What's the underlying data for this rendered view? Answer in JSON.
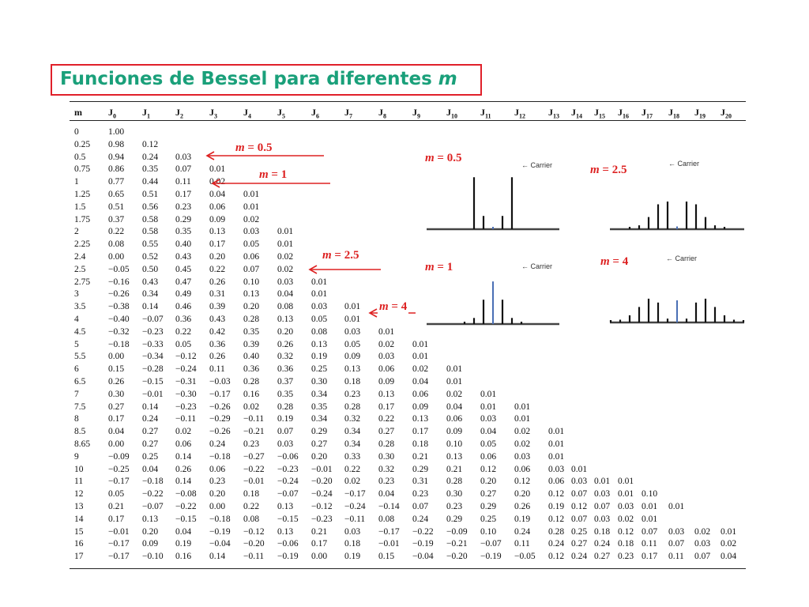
{
  "title": {
    "text": "Funciones de Bessel para diferentes ",
    "var": "m"
  },
  "headers": [
    "m",
    "J0",
    "J1",
    "J2",
    "J3",
    "J4",
    "J5",
    "J6",
    "J7",
    "J8",
    "J9",
    "J10",
    "J11",
    "J12",
    "J13",
    "J14",
    "J15",
    "J16",
    "J17",
    "J18",
    "J19",
    "J20"
  ],
  "rows": [
    [
      "0",
      "1.00"
    ],
    [
      "0.25",
      "0.98",
      "0.12"
    ],
    [
      "0.5",
      "0.94",
      "0.24",
      "0.03"
    ],
    [
      "0.75",
      "0.86",
      "0.35",
      "0.07",
      "0.01"
    ],
    [
      "1",
      "0.77",
      "0.44",
      "0.11",
      "0.02"
    ],
    [
      "1.25",
      "0.65",
      "0.51",
      "0.17",
      "0.04",
      "0.01"
    ],
    [
      "1.5",
      "0.51",
      "0.56",
      "0.23",
      "0.06",
      "0.01"
    ],
    [
      "1.75",
      "0.37",
      "0.58",
      "0.29",
      "0.09",
      "0.02"
    ],
    [
      "2",
      "0.22",
      "0.58",
      "0.35",
      "0.13",
      "0.03",
      "0.01"
    ],
    [
      "2.25",
      "0.08",
      "0.55",
      "0.40",
      "0.17",
      "0.05",
      "0.01"
    ],
    [
      "2.4",
      "0.00",
      "0.52",
      "0.43",
      "0.20",
      "0.06",
      "0.02"
    ],
    [
      "2.5",
      "−0.05",
      "0.50",
      "0.45",
      "0.22",
      "0.07",
      "0.02"
    ],
    [
      "2.75",
      "−0.16",
      "0.43",
      "0.47",
      "0.26",
      "0.10",
      "0.03",
      "0.01"
    ],
    [
      "3",
      "−0.26",
      "0.34",
      "0.49",
      "0.31",
      "0.13",
      "0.04",
      "0.01"
    ],
    [
      "3.5",
      "−0.38",
      "0.14",
      "0.46",
      "0.39",
      "0.20",
      "0.08",
      "0.03",
      "0.01"
    ],
    [
      "4",
      "−0.40",
      "−0.07",
      "0.36",
      "0.43",
      "0.28",
      "0.13",
      "0.05",
      "0.01"
    ],
    [
      "4.5",
      "−0.32",
      "−0.23",
      "0.22",
      "0.42",
      "0.35",
      "0.20",
      "0.08",
      "0.03",
      "0.01"
    ],
    [
      "5",
      "−0.18",
      "−0.33",
      "0.05",
      "0.36",
      "0.39",
      "0.26",
      "0.13",
      "0.05",
      "0.02",
      "0.01"
    ],
    [
      "5.5",
      "0.00",
      "−0.34",
      "−0.12",
      "0.26",
      "0.40",
      "0.32",
      "0.19",
      "0.09",
      "0.03",
      "0.01"
    ],
    [
      "6",
      "0.15",
      "−0.28",
      "−0.24",
      "0.11",
      "0.36",
      "0.36",
      "0.25",
      "0.13",
      "0.06",
      "0.02",
      "0.01"
    ],
    [
      "6.5",
      "0.26",
      "−0.15",
      "−0.31",
      "−0.03",
      "0.28",
      "0.37",
      "0.30",
      "0.18",
      "0.09",
      "0.04",
      "0.01"
    ],
    [
      "7",
      "0.30",
      "−0.01",
      "−0.30",
      "−0.17",
      "0.16",
      "0.35",
      "0.34",
      "0.23",
      "0.13",
      "0.06",
      "0.02",
      "0.01"
    ],
    [
      "7.5",
      "0.27",
      "0.14",
      "−0.23",
      "−0.26",
      "0.02",
      "0.28",
      "0.35",
      "0.28",
      "0.17",
      "0.09",
      "0.04",
      "0.01",
      "0.01"
    ],
    [
      "8",
      "0.17",
      "0.24",
      "−0.11",
      "−0.29",
      "−0.11",
      "0.19",
      "0.34",
      "0.32",
      "0.22",
      "0.13",
      "0.06",
      "0.03",
      "0.01"
    ],
    [
      "8.5",
      "0.04",
      "0.27",
      "0.02",
      "−0.26",
      "−0.21",
      "0.07",
      "0.29",
      "0.34",
      "0.27",
      "0.17",
      "0.09",
      "0.04",
      "0.02",
      "0.01"
    ],
    [
      "8.65",
      "0.00",
      "0.27",
      "0.06",
      "0.24",
      "0.23",
      "0.03",
      "0.27",
      "0.34",
      "0.28",
      "0.18",
      "0.10",
      "0.05",
      "0.02",
      "0.01"
    ],
    [
      "9",
      "−0.09",
      "0.25",
      "0.14",
      "−0.18",
      "−0.27",
      "−0.06",
      "0.20",
      "0.33",
      "0.30",
      "0.21",
      "0.13",
      "0.06",
      "0.03",
      "0.01"
    ],
    [
      "10",
      "−0.25",
      "0.04",
      "0.26",
      "0.06",
      "−0.22",
      "−0.23",
      "−0.01",
      "0.22",
      "0.32",
      "0.29",
      "0.21",
      "0.12",
      "0.06",
      "0.03",
      "0.01"
    ],
    [
      "11",
      "−0.17",
      "−0.18",
      "0.14",
      "0.23",
      "−0.01",
      "−0.24",
      "−0.20",
      "0.02",
      "0.23",
      "0.31",
      "0.28",
      "0.20",
      "0.12",
      "0.06",
      "0.03",
      "0.01",
      "0.01"
    ],
    [
      "12",
      "0.05",
      "−0.22",
      "−0.08",
      "0.20",
      "0.18",
      "−0.07",
      "−0.24",
      "−0.17",
      "0.04",
      "0.23",
      "0.30",
      "0.27",
      "0.20",
      "0.12",
      "0.07",
      "0.03",
      "0.01",
      "0.10"
    ],
    [
      "13",
      "0.21",
      "−0.07",
      "−0.22",
      "0.00",
      "0.22",
      "0.13",
      "−0.12",
      "−0.24",
      "−0.14",
      "0.07",
      "0.23",
      "0.29",
      "0.26",
      "0.19",
      "0.12",
      "0.07",
      "0.03",
      "0.01",
      "0.01"
    ],
    [
      "14",
      "0.17",
      "0.13",
      "−0.15",
      "−0.18",
      "0.08",
      "−0.15",
      "−0.23",
      "−0.11",
      "0.08",
      "0.24",
      "0.29",
      "0.25",
      "0.19",
      "0.12",
      "0.07",
      "0.03",
      "0.02",
      "0.01"
    ],
    [
      "15",
      "−0.01",
      "0.20",
      "0.04",
      "−0.19",
      "−0.12",
      "0.13",
      "0.21",
      "0.03",
      "−0.17",
      "−0.22",
      "−0.09",
      "0.10",
      "0.24",
      "0.28",
      "0.25",
      "0.18",
      "0.12",
      "0.07",
      "0.03",
      "0.02",
      "0.01"
    ],
    [
      "16",
      "−0.17",
      "0.09",
      "0.19",
      "−0.04",
      "−0.20",
      "−0.06",
      "0.17",
      "0.18",
      "−0.01",
      "−0.19",
      "−0.21",
      "−0.07",
      "0.11",
      "0.24",
      "0.27",
      "0.24",
      "0.18",
      "0.11",
      "0.07",
      "0.03",
      "0.02"
    ],
    [
      "17",
      "−0.17",
      "−0.10",
      "0.16",
      "0.14",
      "−0.11",
      "−0.19",
      "0.00",
      "0.19",
      "0.15",
      "−0.04",
      "−0.20",
      "−0.19",
      "−0.05",
      "0.12",
      "0.24",
      "0.27",
      "0.23",
      "0.17",
      "0.11",
      "0.07",
      "0.04"
    ]
  ],
  "arrow_labels": [
    {
      "m": "m",
      "eq": " = 0.5"
    },
    {
      "m": "m",
      "eq": " = 1"
    },
    {
      "m": "m",
      "eq": " = 2.5"
    },
    {
      "m": "m",
      "eq": " = 4"
    }
  ],
  "spectra": [
    {
      "m_label": "m",
      "eq": " = 0.5",
      "carrier_label": "Carrier",
      "amplitudes": [
        0.03,
        0.24,
        0.94
      ]
    },
    {
      "m_label": "m",
      "eq": " = 2.5",
      "carrier_label": "Carrier",
      "amplitudes": [
        0.05,
        0.5,
        0.45,
        0.22,
        0.07,
        0.02
      ]
    },
    {
      "m_label": "m",
      "eq": " = 1",
      "carrier_label": "Carrier",
      "amplitudes": [
        0.77,
        0.44,
        0.11,
        0.02
      ]
    },
    {
      "m_label": "m",
      "eq": " = 4",
      "carrier_label": "Carrier",
      "amplitudes": [
        0.4,
        0.07,
        0.36,
        0.43,
        0.28,
        0.13,
        0.05,
        0.01
      ]
    }
  ],
  "colors": {
    "title_border": "#e0202a",
    "title_text": "#1aa07a",
    "arrow": "#d22",
    "carrier_line": "#4a6fb5"
  }
}
